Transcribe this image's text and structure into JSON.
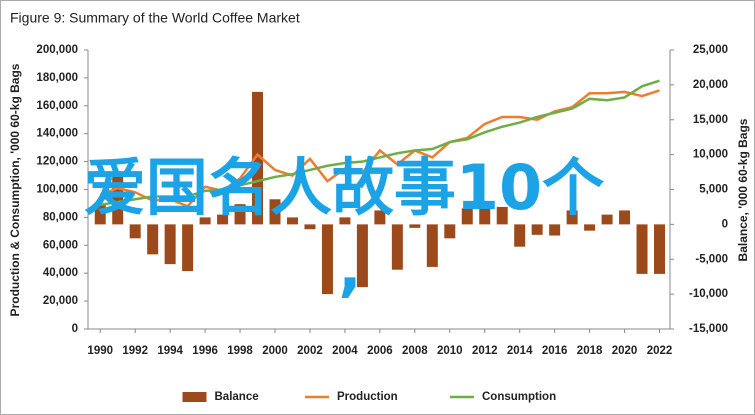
{
  "chart_data": {
    "type": "combo",
    "title": "Figure 9: Summary of the World Coffee Market",
    "y_label": "Production & Consumption, '000 60-kg Bags",
    "y2_label": "Balance, '000 60-kg Bags",
    "overlay_texts": [
      "爱国名人故事10个",
      ","
    ],
    "x": [
      1990,
      1991,
      1992,
      1993,
      1994,
      1995,
      1996,
      1997,
      1998,
      1999,
      2000,
      2001,
      2002,
      2003,
      2004,
      2005,
      2006,
      2007,
      2008,
      2009,
      2010,
      2011,
      2012,
      2013,
      2014,
      2015,
      2016,
      2017,
      2018,
      2019,
      2020,
      2021,
      2022
    ],
    "xlim": [
      1989.3,
      2022.6
    ],
    "xticks": [
      1990,
      1992,
      1994,
      1996,
      1998,
      2000,
      2002,
      2004,
      2006,
      2008,
      2010,
      2012,
      2014,
      2016,
      2018,
      2020,
      2022
    ],
    "ylim": [
      0,
      200000
    ],
    "yticks": [
      0,
      {
        "value": 20000,
        "label": "20,000"
      },
      {
        "value": 40000,
        "label": "40,000"
      },
      {
        "value": 60000,
        "label": "60,000"
      },
      {
        "value": 80000,
        "label": "80,000"
      },
      {
        "value": 100000,
        "label": "100,000"
      },
      {
        "value": 120000,
        "label": "120,000"
      },
      {
        "value": 140000,
        "label": "140,000"
      },
      {
        "value": 160000,
        "label": "160,000"
      },
      {
        "value": 180000,
        "label": "180,000"
      },
      {
        "value": 200000,
        "label": "200,000"
      }
    ],
    "y2lim": [
      -15000,
      25000
    ],
    "y2ticks": [
      {
        "value": -15000,
        "label": "-15,000"
      },
      {
        "value": -10000,
        "label": "-10,000"
      },
      {
        "value": -5000,
        "label": "-5,000"
      },
      0,
      {
        "value": 5000,
        "label": "5,000"
      },
      {
        "value": 10000,
        "label": "10,000"
      },
      {
        "value": 15000,
        "label": "15,000"
      },
      {
        "value": 20000,
        "label": "20,000"
      },
      {
        "value": 25000,
        "label": "25,000"
      }
    ],
    "grid": false,
    "legend": "bottom",
    "series": [
      {
        "name": "Balance",
        "type": "bar",
        "axis": "y2",
        "color": "#9c4a1c",
        "values": [
          3000,
          7500,
          -2000,
          -4300,
          -5700,
          -6700,
          1000,
          1400,
          2900,
          19000,
          3600,
          1000,
          -700,
          -10000,
          1000,
          -9000,
          2000,
          -6500,
          -500,
          -6100,
          -2000,
          2300,
          3000,
          2500,
          -3200,
          -1500,
          -1600,
          2000,
          -900,
          1400,
          2000,
          -7100,
          -7100
        ]
      },
      {
        "name": "Production",
        "type": "line",
        "axis": "y",
        "color": "#ed7d31",
        "values": [
          96000,
          101000,
          98000,
          92000,
          93000,
          88000,
          102000,
          99000,
          108000,
          125000,
          114000,
          110000,
          122000,
          106000,
          115000,
          112000,
          128000,
          118000,
          128000,
          123000,
          134000,
          137000,
          147000,
          152000,
          152000,
          150000,
          156000,
          159000,
          169000,
          169000,
          170000,
          167000,
          171000
        ]
      },
      {
        "name": "Consumption",
        "type": "line",
        "axis": "y",
        "color": "#70ad47",
        "values": [
          89000,
          91000,
          93000,
          95000,
          95000,
          95000,
          99000,
          100000,
          103000,
          106000,
          109000,
          111000,
          114000,
          117000,
          119000,
          120000,
          123000,
          126000,
          128000,
          129000,
          134000,
          136000,
          141000,
          145000,
          148000,
          152000,
          155000,
          158000,
          165000,
          164000,
          166000,
          174000,
          178000
        ]
      }
    ]
  }
}
